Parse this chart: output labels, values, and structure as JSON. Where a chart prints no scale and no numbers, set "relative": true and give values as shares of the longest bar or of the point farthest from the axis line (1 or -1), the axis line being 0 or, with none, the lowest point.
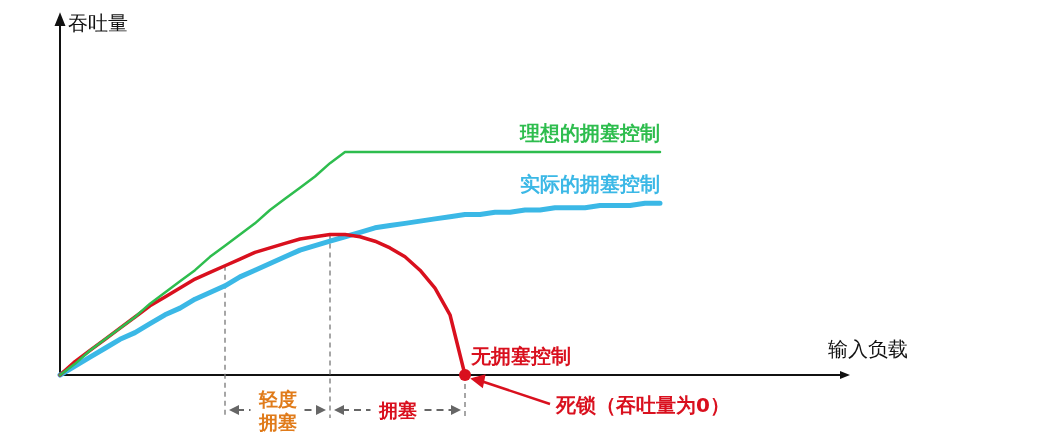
{
  "chart_data": {
    "type": "line",
    "relative": true,
    "categories": [
      null,
      null,
      null,
      null,
      null,
      null,
      null,
      null,
      null,
      null,
      null,
      null,
      null,
      null,
      null,
      null,
      null,
      null,
      null,
      null,
      null,
      null,
      null,
      null,
      null,
      null,
      null,
      null,
      null,
      null,
      null,
      null,
      null,
      null,
      null,
      null,
      null,
      null,
      null,
      null,
      null
    ],
    "series": [
      {
        "name": "理想的拥塞控制",
        "color": "#2ebd4e",
        "values": [
          0,
          0.05,
          0.11,
          0.16,
          0.21,
          0.26,
          0.32,
          0.37,
          0.42,
          0.47,
          0.53,
          0.58,
          0.63,
          0.68,
          0.74,
          0.79,
          0.84,
          0.89,
          0.95,
          1,
          1,
          1,
          1,
          1,
          1,
          1,
          1,
          1,
          1,
          1,
          1,
          1,
          1,
          1,
          1,
          1,
          1,
          1,
          1,
          1,
          1
        ]
      },
      {
        "name": "实际的拥塞控制",
        "color": "#3bb8e6",
        "values": [
          0,
          0.04,
          0.08,
          0.12,
          0.16,
          0.19,
          0.23,
          0.27,
          0.3,
          0.34,
          0.37,
          0.4,
          0.44,
          0.47,
          0.5,
          0.53,
          0.56,
          0.58,
          0.6,
          0.62,
          0.64,
          0.66,
          0.67,
          0.68,
          0.69,
          0.7,
          0.71,
          0.72,
          0.72,
          0.73,
          0.73,
          0.74,
          0.74,
          0.75,
          0.75,
          0.75,
          0.76,
          0.76,
          0.76,
          0.77,
          0.77
        ]
      },
      {
        "name": "无拥塞控制",
        "color": "#d9101e",
        "values": [
          0,
          0.06,
          0.11,
          0.16,
          0.21,
          0.26,
          0.31,
          0.35,
          0.39,
          0.43,
          0.46,
          0.49,
          0.52,
          0.55,
          0.57,
          0.59,
          0.61,
          0.62,
          0.63,
          0.63,
          0.62,
          0.6,
          0.57,
          0.53,
          0.47,
          0.39,
          0.27,
          0,
          null,
          null,
          null,
          null,
          null,
          null,
          null,
          null,
          null,
          null,
          null,
          null,
          null
        ]
      }
    ],
    "annotations": [
      "死锁（吞吐量为0）",
      "轻度",
      "拥塞",
      "拥塞",
      "吞吐量",
      "输入负载"
    ]
  }
}
